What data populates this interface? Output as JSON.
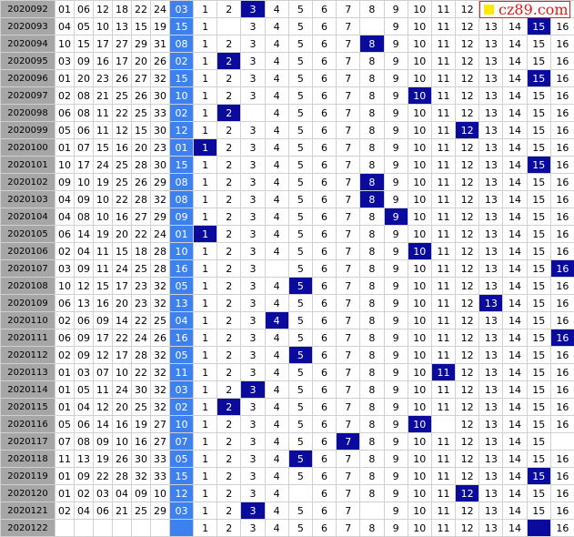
{
  "logo": "cz89.com",
  "rows": [
    {
      "issue": "2020092",
      "reds": [
        "01",
        "06",
        "12",
        "18",
        "22",
        "24"
      ],
      "blue": "03",
      "cells": [
        1,
        2,
        3,
        4,
        5,
        6,
        7,
        8,
        9,
        10,
        11,
        12,
        null,
        null,
        null,
        null
      ],
      "highlight": 2
    },
    {
      "issue": "2020093",
      "reds": [
        "04",
        "05",
        "10",
        "13",
        "15",
        "19"
      ],
      "blue": "15",
      "cells": [
        1,
        null,
        3,
        4,
        5,
        6,
        7,
        null,
        9,
        10,
        11,
        12,
        13,
        14,
        15,
        16
      ],
      "highlight": 14
    },
    {
      "issue": "2020094",
      "reds": [
        "10",
        "15",
        "17",
        "27",
        "29",
        "31"
      ],
      "blue": "08",
      "cells": [
        1,
        2,
        3,
        4,
        5,
        6,
        7,
        8,
        9,
        10,
        11,
        12,
        13,
        14,
        15,
        16
      ],
      "highlight": 7
    },
    {
      "issue": "2020095",
      "reds": [
        "03",
        "09",
        "16",
        "17",
        "20",
        "26"
      ],
      "blue": "02",
      "cells": [
        1,
        2,
        3,
        4,
        5,
        6,
        7,
        8,
        9,
        10,
        11,
        12,
        13,
        14,
        15,
        16
      ],
      "highlight": 1
    },
    {
      "issue": "2020096",
      "reds": [
        "01",
        "20",
        "23",
        "26",
        "27",
        "32"
      ],
      "blue": "15",
      "cells": [
        1,
        2,
        3,
        4,
        5,
        6,
        7,
        8,
        9,
        10,
        11,
        12,
        13,
        14,
        15,
        16
      ],
      "highlight": 14
    },
    {
      "issue": "2020097",
      "reds": [
        "02",
        "08",
        "21",
        "25",
        "26",
        "30"
      ],
      "blue": "10",
      "cells": [
        1,
        2,
        3,
        4,
        5,
        6,
        7,
        8,
        9,
        10,
        11,
        12,
        13,
        14,
        15,
        16
      ],
      "highlight": 9
    },
    {
      "issue": "2020098",
      "reds": [
        "06",
        "08",
        "11",
        "22",
        "25",
        "33"
      ],
      "blue": "02",
      "cells": [
        1,
        2,
        null,
        4,
        5,
        6,
        7,
        8,
        9,
        10,
        11,
        12,
        13,
        14,
        15,
        16
      ],
      "highlight": 1
    },
    {
      "issue": "2020099",
      "reds": [
        "05",
        "06",
        "11",
        "12",
        "15",
        "30"
      ],
      "blue": "12",
      "cells": [
        1,
        2,
        3,
        4,
        5,
        6,
        7,
        8,
        9,
        10,
        11,
        12,
        13,
        14,
        15,
        16
      ],
      "highlight": 11
    },
    {
      "issue": "2020100",
      "reds": [
        "01",
        "07",
        "15",
        "16",
        "20",
        "23"
      ],
      "blue": "01",
      "cells": [
        1,
        2,
        3,
        4,
        5,
        6,
        7,
        8,
        9,
        10,
        11,
        12,
        13,
        14,
        15,
        16
      ],
      "highlight": 0
    },
    {
      "issue": "2020101",
      "reds": [
        "10",
        "17",
        "24",
        "25",
        "28",
        "30"
      ],
      "blue": "15",
      "cells": [
        1,
        2,
        3,
        4,
        5,
        6,
        7,
        8,
        9,
        10,
        11,
        12,
        13,
        14,
        15,
        16
      ],
      "highlight": 14
    },
    {
      "issue": "2020102",
      "reds": [
        "09",
        "10",
        "19",
        "25",
        "26",
        "29"
      ],
      "blue": "08",
      "cells": [
        1,
        2,
        3,
        4,
        5,
        6,
        7,
        8,
        9,
        10,
        11,
        12,
        13,
        14,
        15,
        16
      ],
      "highlight": 7
    },
    {
      "issue": "2020103",
      "reds": [
        "04",
        "09",
        "10",
        "22",
        "28",
        "32"
      ],
      "blue": "08",
      "cells": [
        1,
        2,
        3,
        4,
        5,
        6,
        7,
        8,
        9,
        10,
        11,
        12,
        13,
        14,
        15,
        16
      ],
      "highlight": 7
    },
    {
      "issue": "2020104",
      "reds": [
        "04",
        "08",
        "10",
        "16",
        "27",
        "29"
      ],
      "blue": "09",
      "cells": [
        1,
        2,
        3,
        4,
        5,
        6,
        7,
        8,
        9,
        10,
        11,
        12,
        13,
        14,
        15,
        16
      ],
      "highlight": 8
    },
    {
      "issue": "2020105",
      "reds": [
        "06",
        "14",
        "19",
        "20",
        "22",
        "24"
      ],
      "blue": "01",
      "cells": [
        1,
        2,
        3,
        4,
        5,
        6,
        7,
        8,
        9,
        10,
        11,
        12,
        13,
        14,
        15,
        16
      ],
      "highlight": 0
    },
    {
      "issue": "2020106",
      "reds": [
        "02",
        "04",
        "11",
        "15",
        "18",
        "28"
      ],
      "blue": "10",
      "cells": [
        1,
        2,
        3,
        4,
        5,
        6,
        7,
        8,
        9,
        10,
        11,
        12,
        13,
        14,
        15,
        16
      ],
      "highlight": 9
    },
    {
      "issue": "2020107",
      "reds": [
        "03",
        "09",
        "11",
        "24",
        "25",
        "28"
      ],
      "blue": "16",
      "cells": [
        1,
        2,
        3,
        null,
        5,
        6,
        7,
        8,
        9,
        10,
        11,
        12,
        13,
        14,
        15,
        16
      ],
      "highlight": 15
    },
    {
      "issue": "2020108",
      "reds": [
        "10",
        "12",
        "15",
        "17",
        "23",
        "32"
      ],
      "blue": "05",
      "cells": [
        1,
        2,
        3,
        4,
        5,
        6,
        7,
        8,
        9,
        10,
        11,
        12,
        13,
        14,
        15,
        16
      ],
      "highlight": 4
    },
    {
      "issue": "2020109",
      "reds": [
        "06",
        "13",
        "16",
        "20",
        "23",
        "32"
      ],
      "blue": "13",
      "cells": [
        1,
        2,
        3,
        4,
        5,
        6,
        7,
        8,
        9,
        10,
        11,
        12,
        13,
        14,
        15,
        16
      ],
      "highlight": 12
    },
    {
      "issue": "2020110",
      "reds": [
        "02",
        "06",
        "09",
        "14",
        "22",
        "25"
      ],
      "blue": "04",
      "cells": [
        1,
        2,
        3,
        4,
        5,
        6,
        7,
        8,
        9,
        10,
        11,
        12,
        13,
        14,
        15,
        16
      ],
      "highlight": 3
    },
    {
      "issue": "2020111",
      "reds": [
        "06",
        "09",
        "17",
        "22",
        "24",
        "26"
      ],
      "blue": "16",
      "cells": [
        1,
        2,
        3,
        4,
        5,
        6,
        7,
        8,
        9,
        10,
        11,
        12,
        13,
        14,
        15,
        16
      ],
      "highlight": 15
    },
    {
      "issue": "2020112",
      "reds": [
        "02",
        "09",
        "12",
        "17",
        "28",
        "32"
      ],
      "blue": "05",
      "cells": [
        1,
        2,
        3,
        4,
        5,
        6,
        7,
        8,
        9,
        10,
        11,
        12,
        13,
        14,
        15,
        16
      ],
      "highlight": 4
    },
    {
      "issue": "2020113",
      "reds": [
        "01",
        "03",
        "07",
        "10",
        "22",
        "32"
      ],
      "blue": "11",
      "cells": [
        1,
        2,
        3,
        4,
        5,
        6,
        7,
        8,
        9,
        10,
        11,
        12,
        13,
        14,
        15,
        16
      ],
      "highlight": 10
    },
    {
      "issue": "2020114",
      "reds": [
        "01",
        "05",
        "11",
        "24",
        "30",
        "32"
      ],
      "blue": "03",
      "cells": [
        1,
        2,
        3,
        4,
        5,
        6,
        7,
        8,
        9,
        10,
        11,
        12,
        13,
        14,
        15,
        16
      ],
      "highlight": 2
    },
    {
      "issue": "2020115",
      "reds": [
        "01",
        "04",
        "12",
        "20",
        "25",
        "32"
      ],
      "blue": "02",
      "cells": [
        1,
        2,
        3,
        4,
        5,
        6,
        7,
        8,
        9,
        10,
        11,
        12,
        13,
        14,
        15,
        16
      ],
      "highlight": 1
    },
    {
      "issue": "2020116",
      "reds": [
        "05",
        "06",
        "14",
        "16",
        "19",
        "27"
      ],
      "blue": "10",
      "cells": [
        1,
        2,
        3,
        4,
        5,
        6,
        7,
        8,
        9,
        10,
        null,
        12,
        13,
        14,
        15,
        16
      ],
      "highlight": 9
    },
    {
      "issue": "2020117",
      "reds": [
        "07",
        "08",
        "09",
        "10",
        "16",
        "27"
      ],
      "blue": "07",
      "cells": [
        1,
        2,
        3,
        4,
        5,
        6,
        7,
        8,
        9,
        10,
        11,
        12,
        13,
        14,
        15,
        null
      ],
      "highlight": 6
    },
    {
      "issue": "2020118",
      "reds": [
        "11",
        "13",
        "19",
        "26",
        "30",
        "33"
      ],
      "blue": "05",
      "cells": [
        1,
        2,
        3,
        4,
        5,
        6,
        7,
        8,
        9,
        10,
        11,
        12,
        13,
        14,
        15,
        16
      ],
      "highlight": 4
    },
    {
      "issue": "2020119",
      "reds": [
        "01",
        "09",
        "22",
        "28",
        "32",
        "33"
      ],
      "blue": "15",
      "cells": [
        1,
        2,
        3,
        4,
        5,
        6,
        7,
        8,
        9,
        10,
        11,
        12,
        13,
        14,
        15,
        16
      ],
      "highlight": 14
    },
    {
      "issue": "2020120",
      "reds": [
        "01",
        "02",
        "03",
        "04",
        "09",
        "10"
      ],
      "blue": "12",
      "cells": [
        1,
        2,
        3,
        4,
        null,
        6,
        7,
        8,
        9,
        10,
        11,
        12,
        13,
        14,
        15,
        16
      ],
      "highlight": 11
    },
    {
      "issue": "2020121",
      "reds": [
        "02",
        "04",
        "06",
        "21",
        "25",
        "29"
      ],
      "blue": "03",
      "cells": [
        1,
        2,
        3,
        4,
        5,
        6,
        7,
        null,
        9,
        10,
        11,
        12,
        13,
        14,
        15,
        16
      ],
      "highlight": 2
    },
    {
      "issue": "2020122",
      "reds": [
        null,
        null,
        null,
        null,
        null,
        null
      ],
      "blue": null,
      "cells": [
        1,
        2,
        3,
        4,
        5,
        6,
        7,
        8,
        9,
        10,
        11,
        12,
        13,
        14,
        null,
        16
      ],
      "highlight": 14
    }
  ]
}
